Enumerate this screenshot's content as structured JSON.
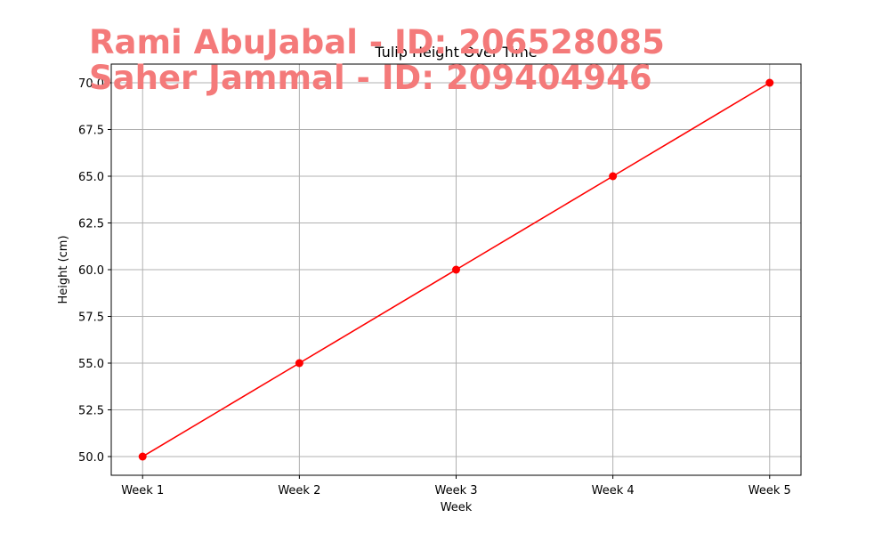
{
  "chart_data": {
    "type": "line",
    "title": "Tulip Height Over Time",
    "xlabel": "Week",
    "ylabel": "Height (cm)",
    "categories": [
      "Week 1",
      "Week 2",
      "Week 3",
      "Week 4",
      "Week 5"
    ],
    "series": [
      {
        "values": [
          50,
          55,
          60,
          65,
          70
        ],
        "color": "#ff0000",
        "marker": "circle"
      }
    ],
    "ylim": [
      49,
      71
    ],
    "yticks": [
      50.0,
      52.5,
      55.0,
      57.5,
      60.0,
      62.5,
      65.0,
      67.5,
      70.0
    ],
    "ytick_labels": [
      "50.0",
      "52.5",
      "55.0",
      "57.5",
      "60.0",
      "62.5",
      "65.0",
      "67.5",
      "70.0"
    ],
    "grid": true,
    "legend": "none"
  },
  "watermark": {
    "lines": [
      "Rami AbuJabal - ID: 206528085",
      "Saher Jammal - ID: 209404946"
    ],
    "color": "#f47a7a"
  }
}
